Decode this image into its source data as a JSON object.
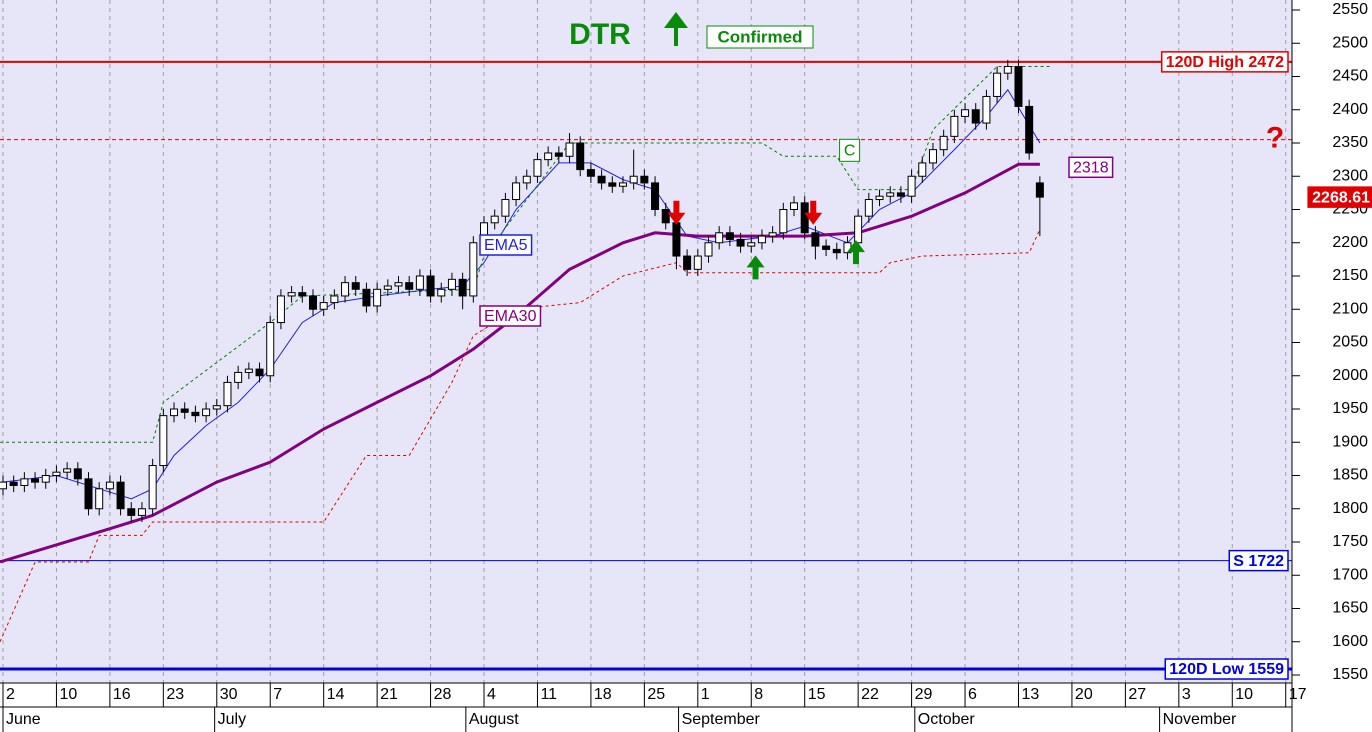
{
  "chart_data": {
    "type": "candlestick",
    "title": "DTR",
    "status": "Confirmed",
    "xlim": [
      -0.28,
      120.4
    ],
    "ylim": [
      1550,
      2550
    ],
    "yticks": [
      1550,
      1600,
      1650,
      1700,
      1750,
      1800,
      1850,
      1900,
      1950,
      2000,
      2050,
      2100,
      2150,
      2200,
      2250,
      2300,
      2350,
      2400,
      2450,
      2500,
      2550
    ],
    "xticks": [
      {
        "value": 0,
        "label": "2"
      },
      {
        "value": 5,
        "label": "10"
      },
      {
        "value": 10,
        "label": "16"
      },
      {
        "value": 15,
        "label": "23"
      },
      {
        "value": 20,
        "label": "30"
      },
      {
        "value": 25,
        "label": "7"
      },
      {
        "value": 30,
        "label": "14"
      },
      {
        "value": 35,
        "label": "21"
      },
      {
        "value": 40,
        "label": "28"
      },
      {
        "value": 45,
        "label": "4"
      },
      {
        "value": 50,
        "label": "11"
      },
      {
        "value": 55,
        "label": "18"
      },
      {
        "value": 60,
        "label": "25"
      },
      {
        "value": 65,
        "label": "1"
      },
      {
        "value": 70,
        "label": "8"
      },
      {
        "value": 75,
        "label": "15"
      },
      {
        "value": 80,
        "label": "22"
      },
      {
        "value": 85,
        "label": "29"
      },
      {
        "value": 90,
        "label": "6"
      },
      {
        "value": 95,
        "label": "13"
      },
      {
        "value": 100,
        "label": "20"
      },
      {
        "value": 105,
        "label": "27"
      },
      {
        "value": 110,
        "label": "3"
      },
      {
        "value": 115,
        "label": "10"
      },
      {
        "value": 120,
        "label": "17"
      }
    ],
    "month_ticks": [
      {
        "value": 0,
        "label": "June"
      },
      {
        "value": 19.8,
        "label": "July"
      },
      {
        "value": 43.3,
        "label": "August"
      },
      {
        "value": 63.2,
        "label": "September"
      },
      {
        "value": 85.3,
        "label": "October"
      },
      {
        "value": 108.2,
        "label": "November"
      }
    ],
    "grid": true,
    "up_color": "#ffffff",
    "down_color": "#000000",
    "open": [
      1830,
      1840,
      1835,
      1845,
      1840,
      1850,
      1855,
      1860,
      1845,
      1800,
      1830,
      1840,
      1800,
      1790,
      1800,
      1865,
      1940,
      1950,
      1945,
      1940,
      1950,
      1955,
      1990,
      2005,
      2010,
      2000,
      2080,
      2120,
      2125,
      2120,
      2100,
      2110,
      2120,
      2140,
      2130,
      2105,
      2130,
      2135,
      2140,
      2130,
      2150,
      2120,
      2130,
      2145,
      2120,
      2200,
      2230,
      2240,
      2265,
      2290,
      2300,
      2325,
      2335,
      2330,
      2350,
      2310,
      2300,
      2290,
      2285,
      2290,
      2300,
      2290,
      2250,
      2230,
      2180,
      2160,
      2180,
      2200,
      2215,
      2205,
      2195,
      2200,
      2210,
      2215,
      2250,
      2260,
      2215,
      2195,
      2190,
      2185,
      2200,
      2240,
      2265,
      2270,
      2275,
      2270,
      2300,
      2320,
      2340,
      2360,
      2390,
      2400,
      2380,
      2420,
      2455,
      2465,
      2405,
      2290
    ],
    "high": [
      1850,
      1850,
      1855,
      1855,
      1860,
      1865,
      1870,
      1870,
      1855,
      1840,
      1850,
      1850,
      1810,
      1810,
      1875,
      1950,
      1960,
      1960,
      1955,
      1960,
      1965,
      2000,
      2015,
      2020,
      2020,
      2090,
      2130,
      2135,
      2135,
      2130,
      2120,
      2130,
      2150,
      2150,
      2140,
      2140,
      2145,
      2150,
      2150,
      2160,
      2160,
      2140,
      2155,
      2155,
      2210,
      2240,
      2250,
      2275,
      2300,
      2310,
      2335,
      2345,
      2345,
      2365,
      2360,
      2320,
      2310,
      2300,
      2300,
      2340,
      2310,
      2300,
      2260,
      2240,
      2190,
      2190,
      2210,
      2225,
      2225,
      2215,
      2210,
      2220,
      2225,
      2260,
      2270,
      2270,
      2225,
      2205,
      2200,
      2210,
      2250,
      2275,
      2280,
      2285,
      2285,
      2310,
      2330,
      2350,
      2370,
      2400,
      2410,
      2410,
      2430,
      2465,
      2475,
      2475,
      2415,
      2300
    ],
    "low": [
      1820,
      1825,
      1825,
      1830,
      1830,
      1840,
      1845,
      1835,
      1790,
      1790,
      1820,
      1790,
      1780,
      1780,
      1790,
      1855,
      1930,
      1935,
      1930,
      1930,
      1940,
      1945,
      1980,
      1995,
      1990,
      1990,
      2070,
      2110,
      2110,
      2090,
      2090,
      2100,
      2110,
      2120,
      2095,
      2095,
      2120,
      2125,
      2120,
      2120,
      2110,
      2110,
      2120,
      2100,
      2110,
      2190,
      2220,
      2230,
      2255,
      2280,
      2290,
      2315,
      2320,
      2320,
      2300,
      2290,
      2280,
      2275,
      2275,
      2280,
      2280,
      2240,
      2220,
      2160,
      2150,
      2150,
      2170,
      2190,
      2195,
      2185,
      2185,
      2190,
      2200,
      2205,
      2240,
      2205,
      2175,
      2180,
      2175,
      2175,
      2190,
      2230,
      2255,
      2260,
      2260,
      2260,
      2290,
      2310,
      2330,
      2350,
      2380,
      2370,
      2370,
      2410,
      2445,
      2395,
      2325,
      2210
    ],
    "close": [
      1840,
      1835,
      1845,
      1840,
      1850,
      1855,
      1860,
      1845,
      1800,
      1830,
      1840,
      1800,
      1790,
      1800,
      1865,
      1940,
      1950,
      1945,
      1940,
      1950,
      1955,
      1990,
      2005,
      2010,
      2000,
      2080,
      2120,
      2125,
      2120,
      2100,
      2110,
      2120,
      2140,
      2130,
      2105,
      2130,
      2135,
      2140,
      2130,
      2150,
      2120,
      2130,
      2145,
      2120,
      2200,
      2230,
      2240,
      2265,
      2290,
      2300,
      2325,
      2335,
      2330,
      2350,
      2310,
      2300,
      2290,
      2285,
      2290,
      2300,
      2290,
      2250,
      2230,
      2180,
      2160,
      2180,
      2200,
      2215,
      2205,
      2195,
      2200,
      2210,
      2215,
      2250,
      2260,
      2215,
      2195,
      2190,
      2185,
      2200,
      2240,
      2265,
      2270,
      2275,
      2270,
      2300,
      2320,
      2340,
      2360,
      2390,
      2400,
      2380,
      2420,
      2455,
      2465,
      2405,
      2335,
      2268.61
    ],
    "lines": [
      {
        "name": "EMA5",
        "color": "#2020e0",
        "width": 1,
        "dashed": false,
        "x": [
          0,
          5,
          9,
          12,
          14,
          16,
          19,
          22,
          25,
          28,
          31,
          35,
          40,
          43,
          45,
          48,
          52,
          55,
          58,
          61,
          64,
          67,
          72,
          75,
          79,
          82,
          85,
          89,
          92,
          94,
          97
        ],
        "values": [
          1840,
          1850,
          1830,
          1815,
          1830,
          1880,
          1925,
          1960,
          2010,
          2080,
          2110,
          2120,
          2130,
          2135,
          2170,
          2250,
          2320,
          2320,
          2295,
          2280,
          2210,
          2200,
          2210,
          2225,
          2200,
          2250,
          2275,
          2340,
          2390,
          2430,
          2350
        ]
      },
      {
        "name": "EMA30",
        "color": "#800080",
        "width": 3,
        "dashed": false,
        "x": [
          -0.28,
          10,
          14,
          20,
          25,
          30,
          35,
          40,
          44,
          48,
          53,
          58,
          61,
          65,
          70,
          75,
          80,
          85,
          90,
          95,
          97
        ],
        "values": [
          1720,
          1770,
          1790,
          1840,
          1870,
          1920,
          1960,
          2000,
          2040,
          2090,
          2160,
          2200,
          2215,
          2210,
          2210,
          2210,
          2215,
          2240,
          2275,
          2318,
          2318
        ]
      },
      {
        "color": "#e00000",
        "width": 1,
        "dashed": true,
        "x": [
          -0.28,
          3,
          8,
          9,
          13,
          14,
          30,
          34,
          38,
          42,
          44,
          48,
          54,
          58,
          63,
          64,
          82,
          83,
          86,
          96,
          97
        ],
        "values": [
          1600,
          1720,
          1720,
          1760,
          1760,
          1780,
          1780,
          1880,
          1880,
          1990,
          2060,
          2100,
          2110,
          2150,
          2170,
          2155,
          2155,
          2170,
          2180,
          2185,
          2220
        ]
      },
      {
        "color": "#008000",
        "width": 1,
        "dashed": true,
        "x": [
          -0.28,
          14,
          15,
          25,
          28,
          44,
          45,
          53,
          71,
          73,
          78,
          80,
          85,
          87,
          93,
          98
        ],
        "values": [
          1900,
          1900,
          1960,
          2080,
          2120,
          2130,
          2180,
          2350,
          2350,
          2330,
          2330,
          2280,
          2280,
          2370,
          2465,
          2465
        ]
      }
    ],
    "levels": [
      {
        "label": "120D High 2472",
        "value": 2472,
        "color": "#e00000",
        "width": 2
      },
      {
        "label": "S 1722",
        "value": 1722,
        "color": "#0000e0",
        "width": 1
      },
      {
        "label": "120D Low 1559",
        "value": 1559,
        "color": "#0000e0",
        "width": 3
      }
    ],
    "question_level": {
      "label": "?",
      "value": 2355,
      "color": "#e00000"
    },
    "ema30_value": {
      "value": 2318,
      "color": "#800080"
    },
    "price_color": "#e00000",
    "signals": [
      {
        "direction": "down",
        "x": 63,
        "value": 2227
      },
      {
        "direction": "down",
        "x": 75.8,
        "value": 2227
      },
      {
        "direction": "up",
        "x": 70.4,
        "value": 2181
      },
      {
        "direction": "up",
        "x": 79.8,
        "value": 2204
      }
    ],
    "marker": {
      "label": "C",
      "x": 79.2,
      "value": 2339
    }
  }
}
